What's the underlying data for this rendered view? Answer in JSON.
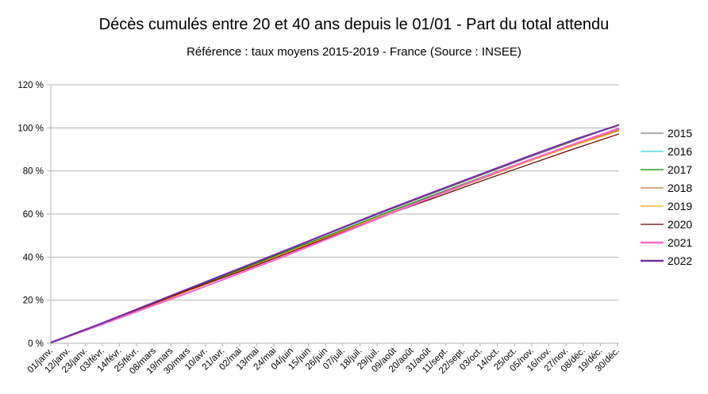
{
  "chart_data": {
    "type": "line",
    "title": "Décès cumulés entre 20 et 40 ans depuis le 01/01 - Part du total attendu",
    "subtitle": "Référence : taux moyens 2015-2019 - France  (Source : INSEE)",
    "xlabel": "",
    "ylabel": "",
    "ylim": [
      0,
      120
    ],
    "y_ticks": [
      "0 %",
      "20 %",
      "40 %",
      "60 %",
      "80 %",
      "100 %",
      "120 %"
    ],
    "x_ticks": [
      "01/janv.",
      "12/janv.",
      "23/janv.",
      "03/févr.",
      "14/févr.",
      "25/févr.",
      "08/mars",
      "19/mars",
      "30/mars",
      "10/avr.",
      "21/avr.",
      "02/mai",
      "13/mai",
      "24/mai",
      "04/juin",
      "15/juin",
      "26/juin",
      "07/juil.",
      "18/juil.",
      "29/juil.",
      "09/août",
      "20/août",
      "31/août",
      "11/sept.",
      "22/sept.",
      "03/oct.",
      "14/oct.",
      "25/oct.",
      "05/nov.",
      "16/nov.",
      "27/nov.",
      "08/déc.",
      "19/déc.",
      "30/déc."
    ],
    "grid": "horizontal",
    "legend_position": "right",
    "x": [
      1,
      32,
      60,
      91,
      121,
      152,
      182,
      213,
      244,
      274,
      305,
      335,
      365
    ],
    "series": [
      {
        "name": "2015",
        "color": "#808080",
        "values": [
          0.3,
          8.8,
          16.9,
          25.8,
          34.3,
          43.3,
          51.8,
          60.6,
          69.1,
          77.3,
          85.7,
          93.6,
          101.6
        ]
      },
      {
        "name": "2016",
        "color": "#33cccc",
        "values": [
          0.3,
          8.6,
          16.4,
          25.0,
          33.4,
          42.1,
          50.5,
          59.2,
          67.7,
          75.7,
          84.1,
          91.8,
          99.3
        ]
      },
      {
        "name": "2017",
        "color": "#008000",
        "values": [
          0.3,
          8.7,
          16.7,
          25.4,
          33.8,
          42.7,
          51.0,
          59.8,
          68.2,
          76.3,
          84.6,
          92.2,
          99.6
        ]
      },
      {
        "name": "2018",
        "color": "#bf8040",
        "values": [
          0.3,
          8.6,
          16.4,
          25.0,
          33.4,
          42.1,
          50.5,
          59.2,
          67.7,
          75.7,
          84.1,
          91.8,
          99.1
        ]
      },
      {
        "name": "2019",
        "color": "#ffa500",
        "values": [
          0.3,
          8.5,
          16.2,
          24.8,
          33.2,
          41.9,
          50.3,
          59.0,
          67.5,
          75.5,
          83.9,
          91.6,
          98.6
        ]
      },
      {
        "name": "2020",
        "color": "#660000",
        "values": [
          0.3,
          8.5,
          16.5,
          25.2,
          33.0,
          41.6,
          50.0,
          58.7,
          66.8,
          74.6,
          82.5,
          90.0,
          97.2
        ]
      },
      {
        "name": "2021",
        "color": "#ff66cc",
        "values": [
          0.3,
          8.3,
          15.8,
          24.0,
          32.2,
          40.8,
          49.5,
          58.6,
          67.6,
          75.9,
          84.4,
          92.2,
          99.8
        ]
      },
      {
        "name": "2022",
        "color": "#7030a0",
        "values": [
          0.3,
          8.8,
          16.9,
          25.8,
          34.4,
          43.3,
          52.0,
          61.0,
          69.6,
          77.8,
          86.3,
          94.2,
          101.4
        ]
      }
    ]
  }
}
